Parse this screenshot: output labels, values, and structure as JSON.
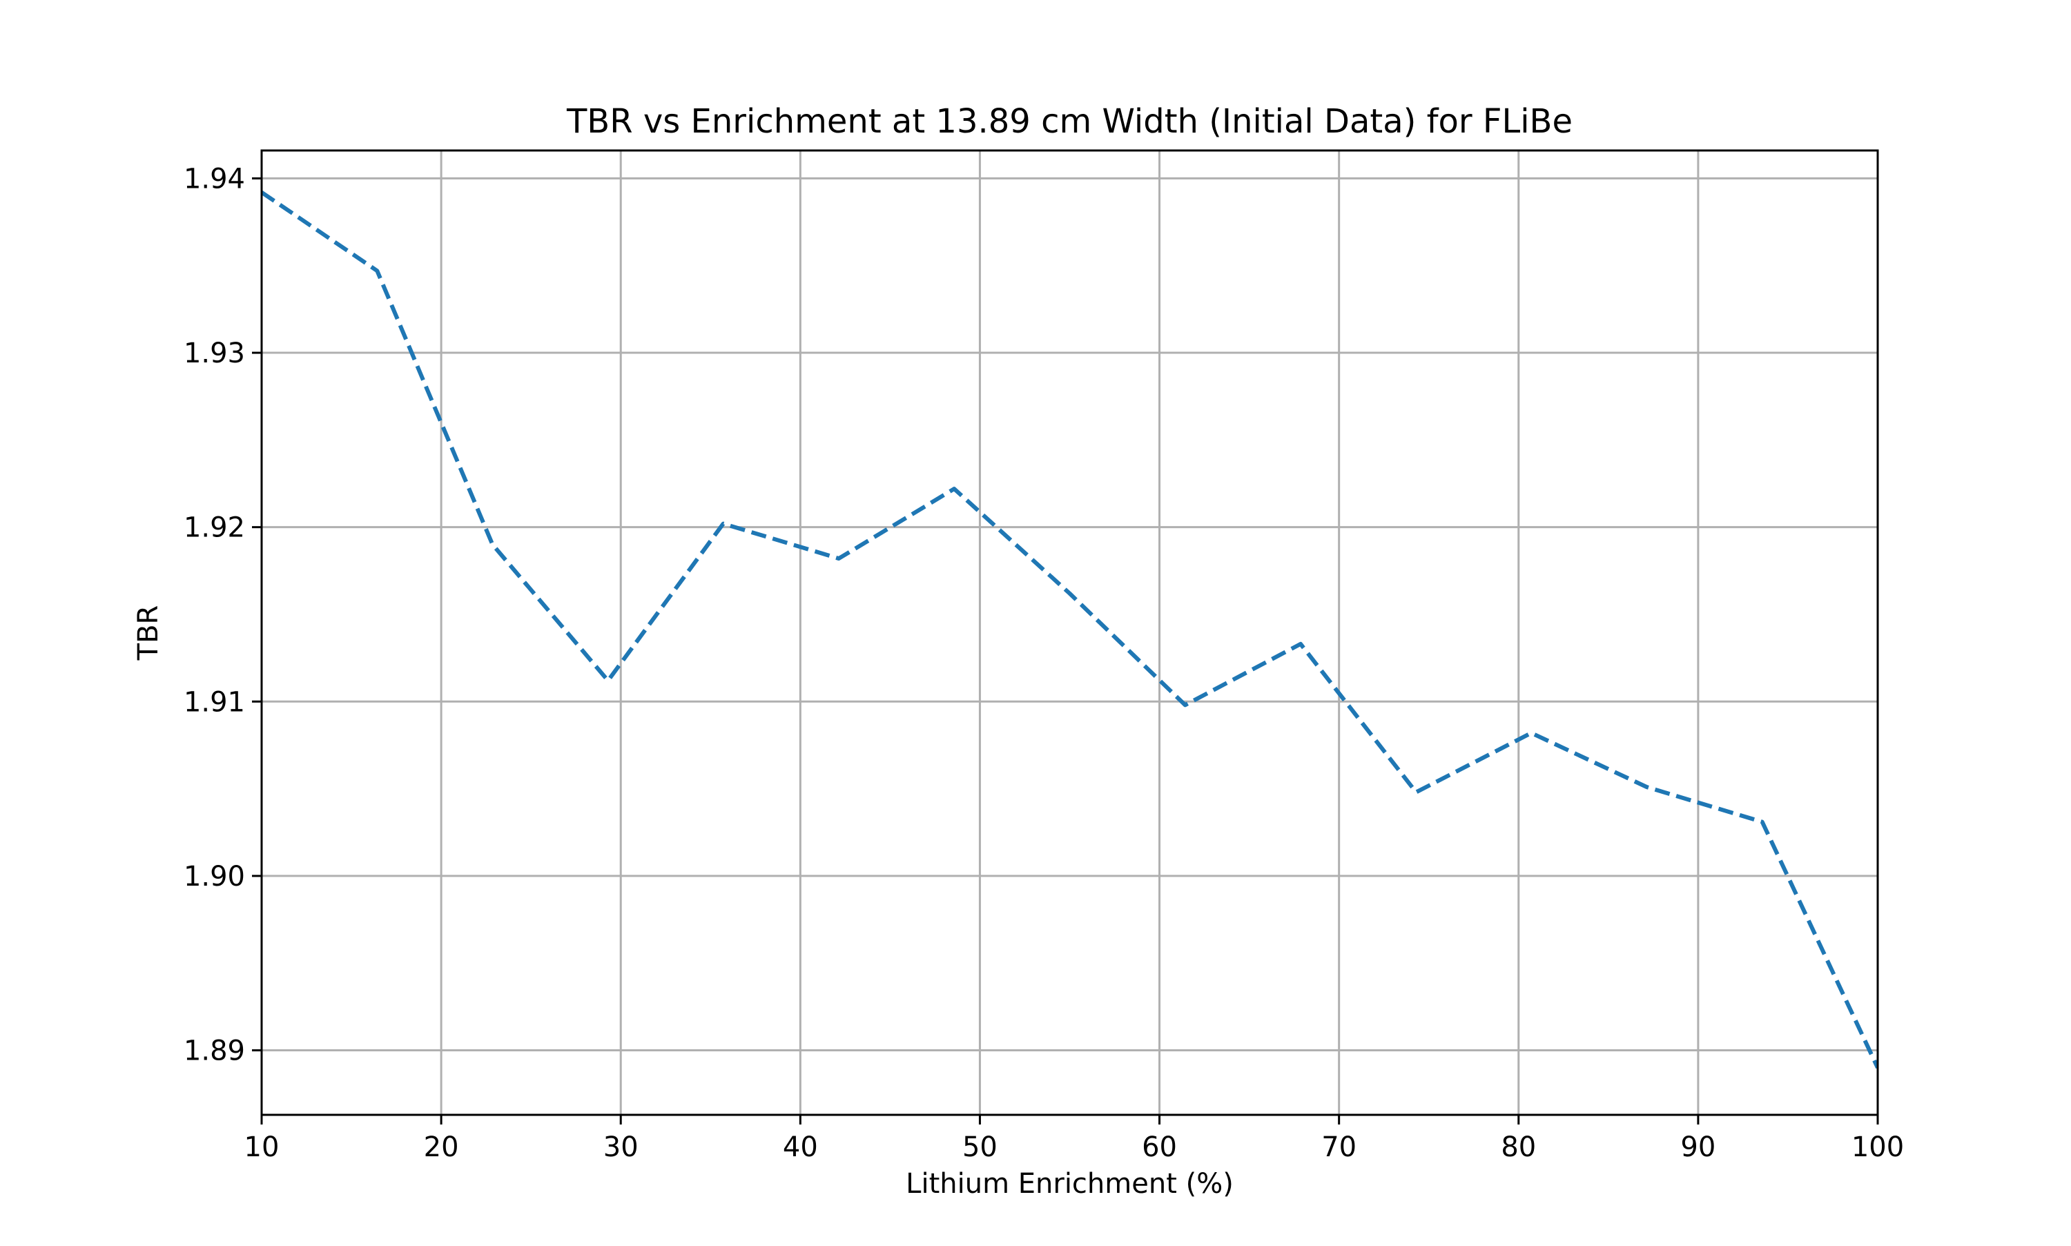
{
  "chart_data": {
    "type": "line",
    "title": "TBR vs Enrichment at 13.89 cm Width (Initial Data) for FLiBe",
    "xlabel": "Lithium Enrichment (%)",
    "ylabel": "TBR",
    "xlim": [
      10,
      100
    ],
    "ylim": [
      1.8863,
      1.9416
    ],
    "grid": true,
    "line_style": "dashed",
    "x_ticks": [
      10,
      20,
      30,
      40,
      50,
      60,
      70,
      80,
      90,
      100
    ],
    "x_tick_labels": [
      "10",
      "20",
      "30",
      "40",
      "50",
      "60",
      "70",
      "80",
      "90",
      "100"
    ],
    "y_ticks": [
      1.89,
      1.9,
      1.91,
      1.92,
      1.93,
      1.94
    ],
    "y_tick_labels": [
      "1.89",
      "1.90",
      "1.91",
      "1.92",
      "1.93",
      "1.94"
    ],
    "series": [
      {
        "color": "#1f77b4",
        "x": [
          10,
          16.43,
          22.86,
          29.29,
          35.71,
          42.14,
          48.57,
          55.0,
          61.43,
          67.86,
          74.29,
          80.71,
          87.14,
          93.57,
          100
        ],
        "y": [
          1.9392,
          1.9347,
          1.919,
          1.9112,
          1.9202,
          1.9182,
          1.9222,
          1.9162,
          1.9098,
          1.9133,
          1.9048,
          1.9082,
          1.9051,
          1.9031,
          1.889
        ]
      }
    ]
  }
}
